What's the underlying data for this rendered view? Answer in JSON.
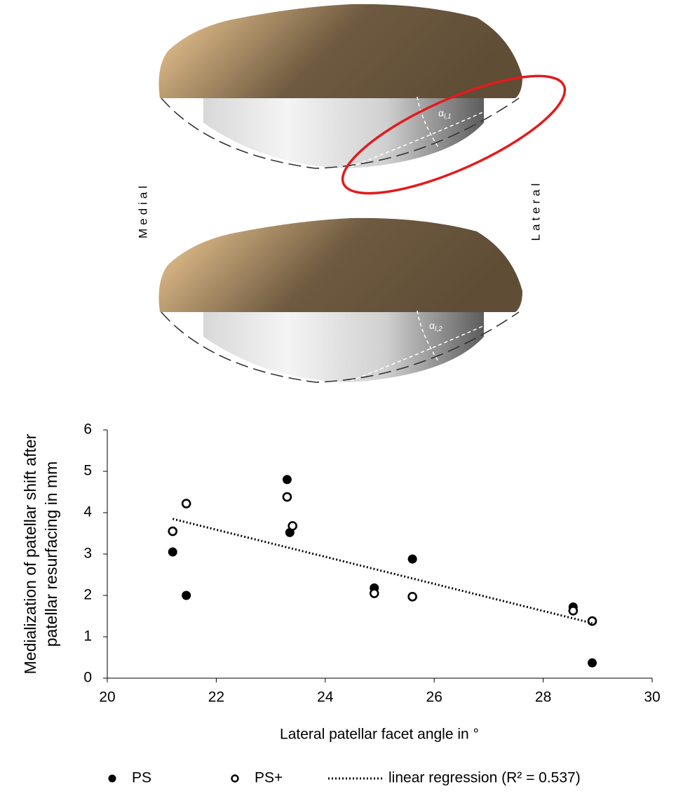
{
  "illustration": {
    "medial": "Medial",
    "lateral": "Lateral",
    "angle_1": {
      "symbol": "α",
      "subscript": "l,1"
    },
    "angle_2": {
      "symbol": "α",
      "subscript": "l,2"
    }
  },
  "chart_data": {
    "type": "scatter",
    "xlabel": "Lateral patellar facet angle in °",
    "ylabel": [
      "Medialization of patellar shift after",
      "patellar resurfacing in mm"
    ],
    "xlim": [
      20,
      30
    ],
    "xticks": [
      20,
      22,
      24,
      26,
      28,
      30
    ],
    "ylim": [
      0,
      6
    ],
    "yticks": [
      0,
      1,
      2,
      3,
      4,
      5,
      6
    ],
    "series": [
      {
        "name": "PS",
        "color": "#000000",
        "marker": "filled",
        "x": [
          21.2,
          21.45,
          23.3,
          23.35,
          24.9,
          25.6,
          28.55,
          28.9
        ],
        "values": [
          3.05,
          2.0,
          4.8,
          3.52,
          2.18,
          2.88,
          1.72,
          0.37
        ]
      },
      {
        "name": "PS+",
        "color": "#000000",
        "marker": "open",
        "x": [
          21.2,
          21.45,
          23.3,
          23.4,
          24.9,
          25.6,
          28.55,
          28.9
        ],
        "values": [
          3.55,
          4.22,
          4.38,
          3.68,
          2.05,
          1.97,
          1.63,
          1.38
        ]
      },
      {
        "name": "linear regression (R² = 0.537)",
        "color": "#000000",
        "marker": "dotted-line",
        "x": [
          21.2,
          28.9
        ],
        "values": [
          3.85,
          1.33
        ]
      }
    ]
  }
}
